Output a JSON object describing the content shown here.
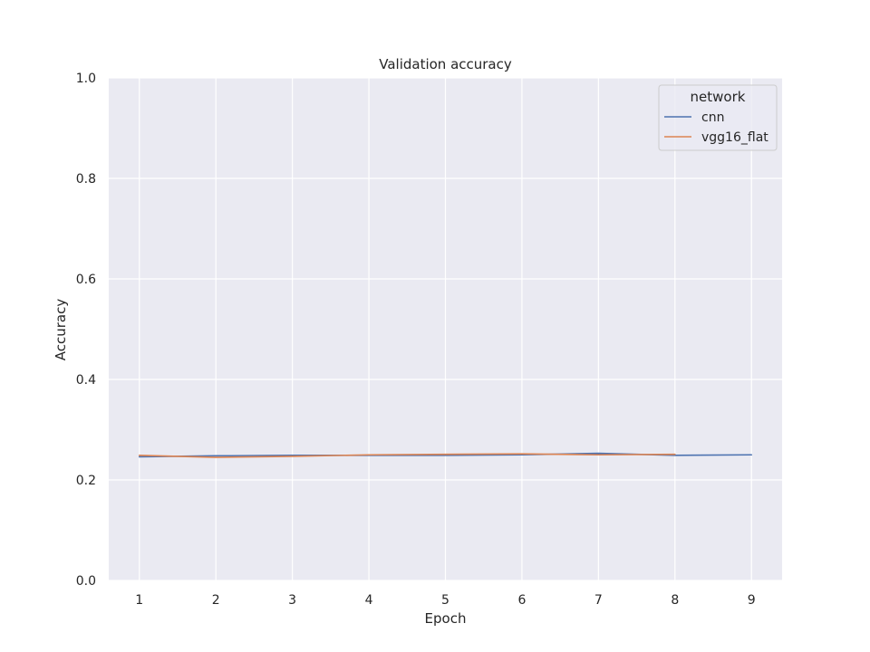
{
  "chart_data": {
    "type": "line",
    "title": "Validation accuracy",
    "xlabel": "Epoch",
    "ylabel": "Accuracy",
    "xlim": [
      0.6,
      9.4
    ],
    "ylim": [
      0.0,
      1.0
    ],
    "xticks": [
      1,
      2,
      3,
      4,
      5,
      6,
      7,
      8,
      9
    ],
    "yticks": [
      0.0,
      0.2,
      0.4,
      0.6,
      0.8,
      1.0
    ],
    "ytick_labels": [
      "0.0",
      "0.2",
      "0.4",
      "0.6",
      "0.8",
      "1.0"
    ],
    "grid": true,
    "legend": {
      "title": "network",
      "placement": "upper right"
    },
    "series": [
      {
        "name": "cnn",
        "color": "#4c72b0",
        "x": [
          1,
          2,
          3,
          4,
          5,
          6,
          7,
          8,
          9
        ],
        "y": [
          0.246,
          0.248,
          0.249,
          0.249,
          0.249,
          0.25,
          0.253,
          0.249,
          0.25
        ]
      },
      {
        "name": "vgg16_flat",
        "color": "#dd8452",
        "x": [
          1,
          2,
          3,
          4,
          5,
          6,
          7,
          8
        ],
        "y": [
          0.249,
          0.245,
          0.247,
          0.25,
          0.251,
          0.252,
          0.25,
          0.251
        ]
      }
    ]
  },
  "colors": {
    "plot_background": "#eaeaf2",
    "grid": "#ffffff",
    "text": "#262626"
  }
}
